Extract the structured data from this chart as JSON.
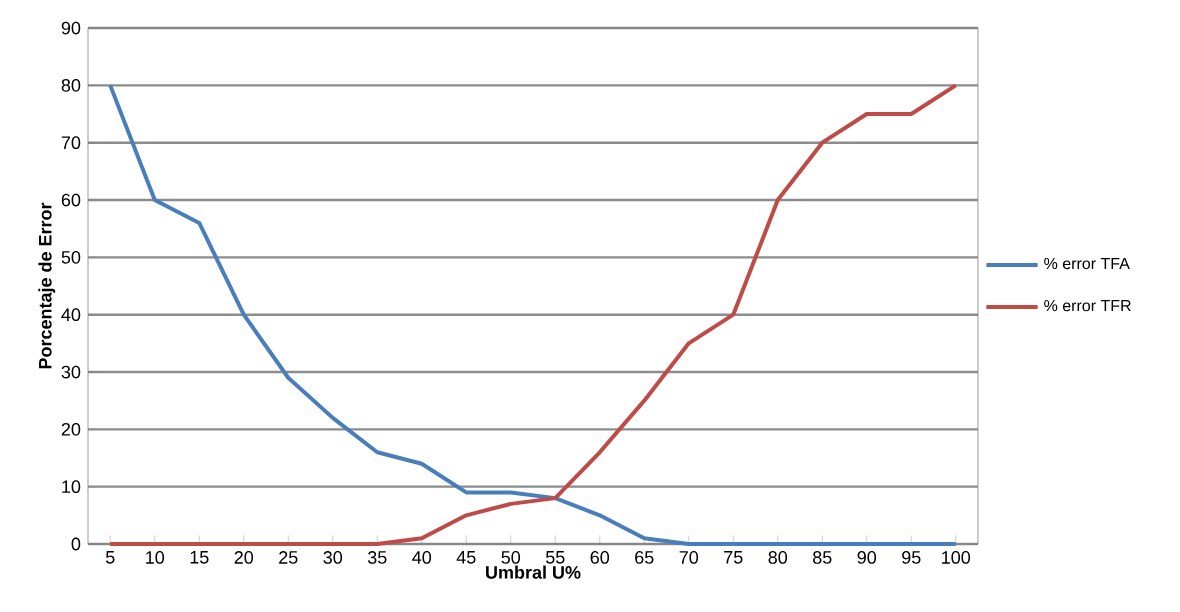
{
  "chart_data": {
    "type": "line",
    "xlabel": "Umbral U%",
    "ylabel": "Porcentaje de Error",
    "categories": [
      "5",
      "10",
      "15",
      "20",
      "25",
      "30",
      "35",
      "40",
      "45",
      "50",
      "55",
      "60",
      "65",
      "70",
      "75",
      "80",
      "85",
      "90",
      "95",
      "100"
    ],
    "series": [
      {
        "name": "% error TFA",
        "color": "#4a7ebb",
        "values": [
          80,
          60,
          56,
          40,
          29,
          22,
          16,
          14,
          9,
          9,
          8,
          5,
          1,
          0,
          0,
          0,
          0,
          0,
          0,
          0
        ]
      },
      {
        "name": "% error TFR",
        "color": "#be4b48",
        "values": [
          0,
          0,
          0,
          0,
          0,
          0,
          0,
          1,
          5,
          7,
          8,
          16,
          25,
          35,
          40,
          60,
          70,
          75,
          75,
          80
        ]
      }
    ],
    "ylim": [
      0,
      90
    ],
    "yticks": [
      0,
      10,
      20,
      30,
      40,
      50,
      60,
      70,
      80,
      90
    ],
    "grid": "y",
    "legend": "right",
    "marker": "none",
    "line_style": "solid"
  }
}
